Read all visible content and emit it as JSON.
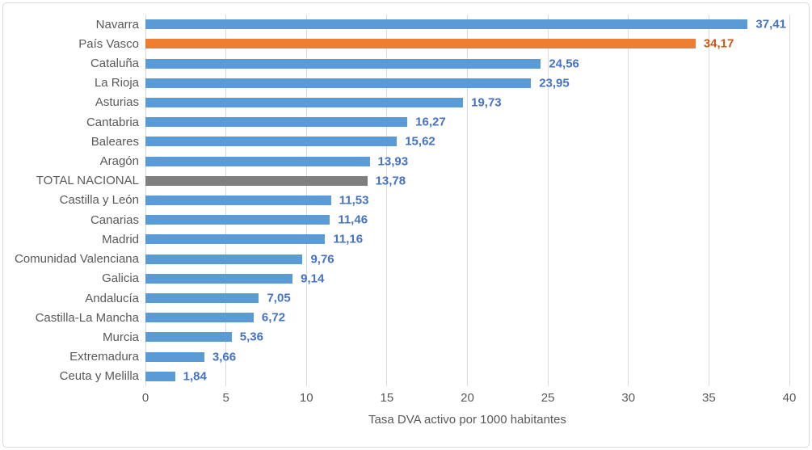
{
  "chart_data": {
    "type": "bar",
    "orientation": "horizontal",
    "title": "",
    "xlabel": "Tasa DVA activo por 1000 habitantes",
    "xlim": [
      0,
      40
    ],
    "xticks": [
      "0",
      "5",
      "10",
      "15",
      "20",
      "25",
      "30",
      "35",
      "40"
    ],
    "grid": "vertical gridlines every 5 units, light gray",
    "legend": "none",
    "rows": [
      {
        "category": "Navarra",
        "value": 37.41,
        "label": "37,41",
        "bar_color": "#5B9BD5",
        "label_color": "#4472C4"
      },
      {
        "category": "País Vasco",
        "value": 34.17,
        "label": "34,17",
        "bar_color": "#ED7D31",
        "label_color": "#C55A11"
      },
      {
        "category": "Cataluña",
        "value": 24.56,
        "label": "24,56",
        "bar_color": "#5B9BD5",
        "label_color": "#4472C4"
      },
      {
        "category": "La Rioja",
        "value": 23.95,
        "label": "23,95",
        "bar_color": "#5B9BD5",
        "label_color": "#4472C4"
      },
      {
        "category": "Asturias",
        "value": 19.73,
        "label": "19,73",
        "bar_color": "#5B9BD5",
        "label_color": "#4472C4"
      },
      {
        "category": "Cantabria",
        "value": 16.27,
        "label": "16,27",
        "bar_color": "#5B9BD5",
        "label_color": "#4472C4"
      },
      {
        "category": "Baleares",
        "value": 15.62,
        "label": "15,62",
        "bar_color": "#5B9BD5",
        "label_color": "#4472C4"
      },
      {
        "category": "Aragón",
        "value": 13.93,
        "label": "13,93",
        "bar_color": "#5B9BD5",
        "label_color": "#4472C4"
      },
      {
        "category": "TOTAL NACIONAL",
        "value": 13.78,
        "label": "13,78",
        "bar_color": "#7F7F7F",
        "label_color": "#4472C4"
      },
      {
        "category": "Castilla y León",
        "value": 11.53,
        "label": "11,53",
        "bar_color": "#5B9BD5",
        "label_color": "#4472C4"
      },
      {
        "category": "Canarias",
        "value": 11.46,
        "label": "11,46",
        "bar_color": "#5B9BD5",
        "label_color": "#4472C4"
      },
      {
        "category": "Madrid",
        "value": 11.16,
        "label": "11,16",
        "bar_color": "#5B9BD5",
        "label_color": "#4472C4"
      },
      {
        "category": "Comunidad Valenciana",
        "value": 9.76,
        "label": "9,76",
        "bar_color": "#5B9BD5",
        "label_color": "#4472C4"
      },
      {
        "category": "Galicia",
        "value": 9.14,
        "label": "9,14",
        "bar_color": "#5B9BD5",
        "label_color": "#4472C4"
      },
      {
        "category": "Andalucía",
        "value": 7.05,
        "label": "7,05",
        "bar_color": "#5B9BD5",
        "label_color": "#4472C4"
      },
      {
        "category": "Castilla-La Mancha",
        "value": 6.72,
        "label": "6,72",
        "bar_color": "#5B9BD5",
        "label_color": "#4472C4"
      },
      {
        "category": "Murcia",
        "value": 5.36,
        "label": "5,36",
        "bar_color": "#5B9BD5",
        "label_color": "#4472C4"
      },
      {
        "category": "Extremadura",
        "value": 3.66,
        "label": "3,66",
        "bar_color": "#5B9BD5",
        "label_color": "#4472C4"
      },
      {
        "category": "Ceuta y Melilla",
        "value": 1.84,
        "label": "1,84",
        "bar_color": "#5B9BD5",
        "label_color": "#4472C4"
      }
    ],
    "colors": {
      "bar_default": "#5B9BD5",
      "bar_highlight": "#ED7D31",
      "bar_total": "#7F7F7F",
      "value_label_default": "#4472C4",
      "value_label_highlight": "#C55A11",
      "axis_text": "#595959",
      "gridline": "#D9D9D9",
      "chart_border": "#D9D9D9",
      "background": "#FFFFFF"
    }
  }
}
